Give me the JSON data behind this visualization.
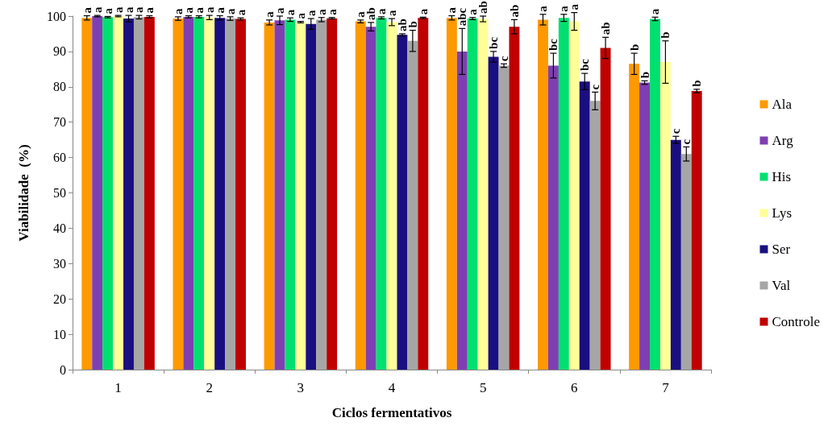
{
  "chart_data": {
    "type": "bar",
    "xlabel": "Ciclos fermentativos",
    "ylabel": "Viabilidade  (%)",
    "categories": [
      "1",
      "2",
      "3",
      "4",
      "5",
      "6",
      "7"
    ],
    "ylim": [
      0,
      100
    ],
    "yticks": [
      0,
      10,
      20,
      30,
      40,
      50,
      60,
      70,
      80,
      90,
      100
    ],
    "grid": false,
    "legend": "right",
    "series": [
      {
        "name": "Ala",
        "color": "#ff9900",
        "values": [
          99.5,
          99.3,
          98.2,
          98.5,
          99.5,
          99,
          86.5
        ],
        "errors": [
          0.6,
          0.5,
          0.7,
          0.4,
          0.6,
          1.5,
          3
        ],
        "value_labels": [
          "a",
          "a",
          "a",
          "a",
          "a",
          "a",
          "b"
        ]
      },
      {
        "name": "Arg",
        "color": "#7f3fb3",
        "values": [
          100,
          99.8,
          98.8,
          97,
          90,
          86,
          81.2
        ],
        "errors": [
          0.2,
          0.3,
          1.2,
          1.2,
          6.5,
          3.5,
          0.5
        ],
        "value_labels": [
          "a",
          "a",
          "a",
          "ab",
          "abc",
          "bc",
          "b"
        ]
      },
      {
        "name": "His",
        "color": "#00e070",
        "values": [
          99.7,
          99.8,
          99,
          99.5,
          99.3,
          99.5,
          99.2
        ],
        "errors": [
          0.2,
          0.3,
          0.5,
          0.3,
          0.3,
          1,
          0.5
        ],
        "value_labels": [
          "a",
          "a",
          "a",
          "a",
          "a",
          "a",
          "a"
        ]
      },
      {
        "name": "Lys",
        "color": "#ffff99",
        "values": [
          100,
          99.6,
          98.3,
          98.3,
          99.2,
          98.5,
          87
        ],
        "errors": [
          0.2,
          0.6,
          0.2,
          1,
          0.8,
          2.5,
          6
        ],
        "value_labels": [
          "a",
          "a",
          "a",
          "a",
          "ab",
          "a",
          "b"
        ]
      },
      {
        "name": "Ser",
        "color": "#1a0f80",
        "values": [
          99.3,
          99.5,
          97.8,
          94.7,
          88.5,
          81.5,
          65
        ],
        "errors": [
          0.9,
          0.6,
          1.5,
          0.3,
          1.5,
          2.3,
          1
        ],
        "value_labels": [
          "a",
          "a",
          "a",
          "ab",
          "bc",
          "bc",
          "c"
        ]
      },
      {
        "name": "Val",
        "color": "#a6a6a6",
        "values": [
          99.7,
          99.3,
          99,
          93,
          86,
          76,
          61
        ],
        "errors": [
          0.5,
          0.5,
          0.6,
          3,
          0.5,
          2.5,
          2
        ],
        "value_labels": [
          "a",
          "a",
          "a",
          "b",
          "c",
          "c",
          "c"
        ]
      },
      {
        "name": "Controle",
        "color": "#c00000",
        "values": [
          99.8,
          99.2,
          99.4,
          99.5,
          97,
          91,
          78.8
        ],
        "errors": [
          0.3,
          0.3,
          0.2,
          0.2,
          2,
          3,
          0.5
        ],
        "value_labels": [
          "a",
          "a",
          "a",
          "a",
          "ab",
          "ab",
          "b"
        ]
      }
    ]
  }
}
